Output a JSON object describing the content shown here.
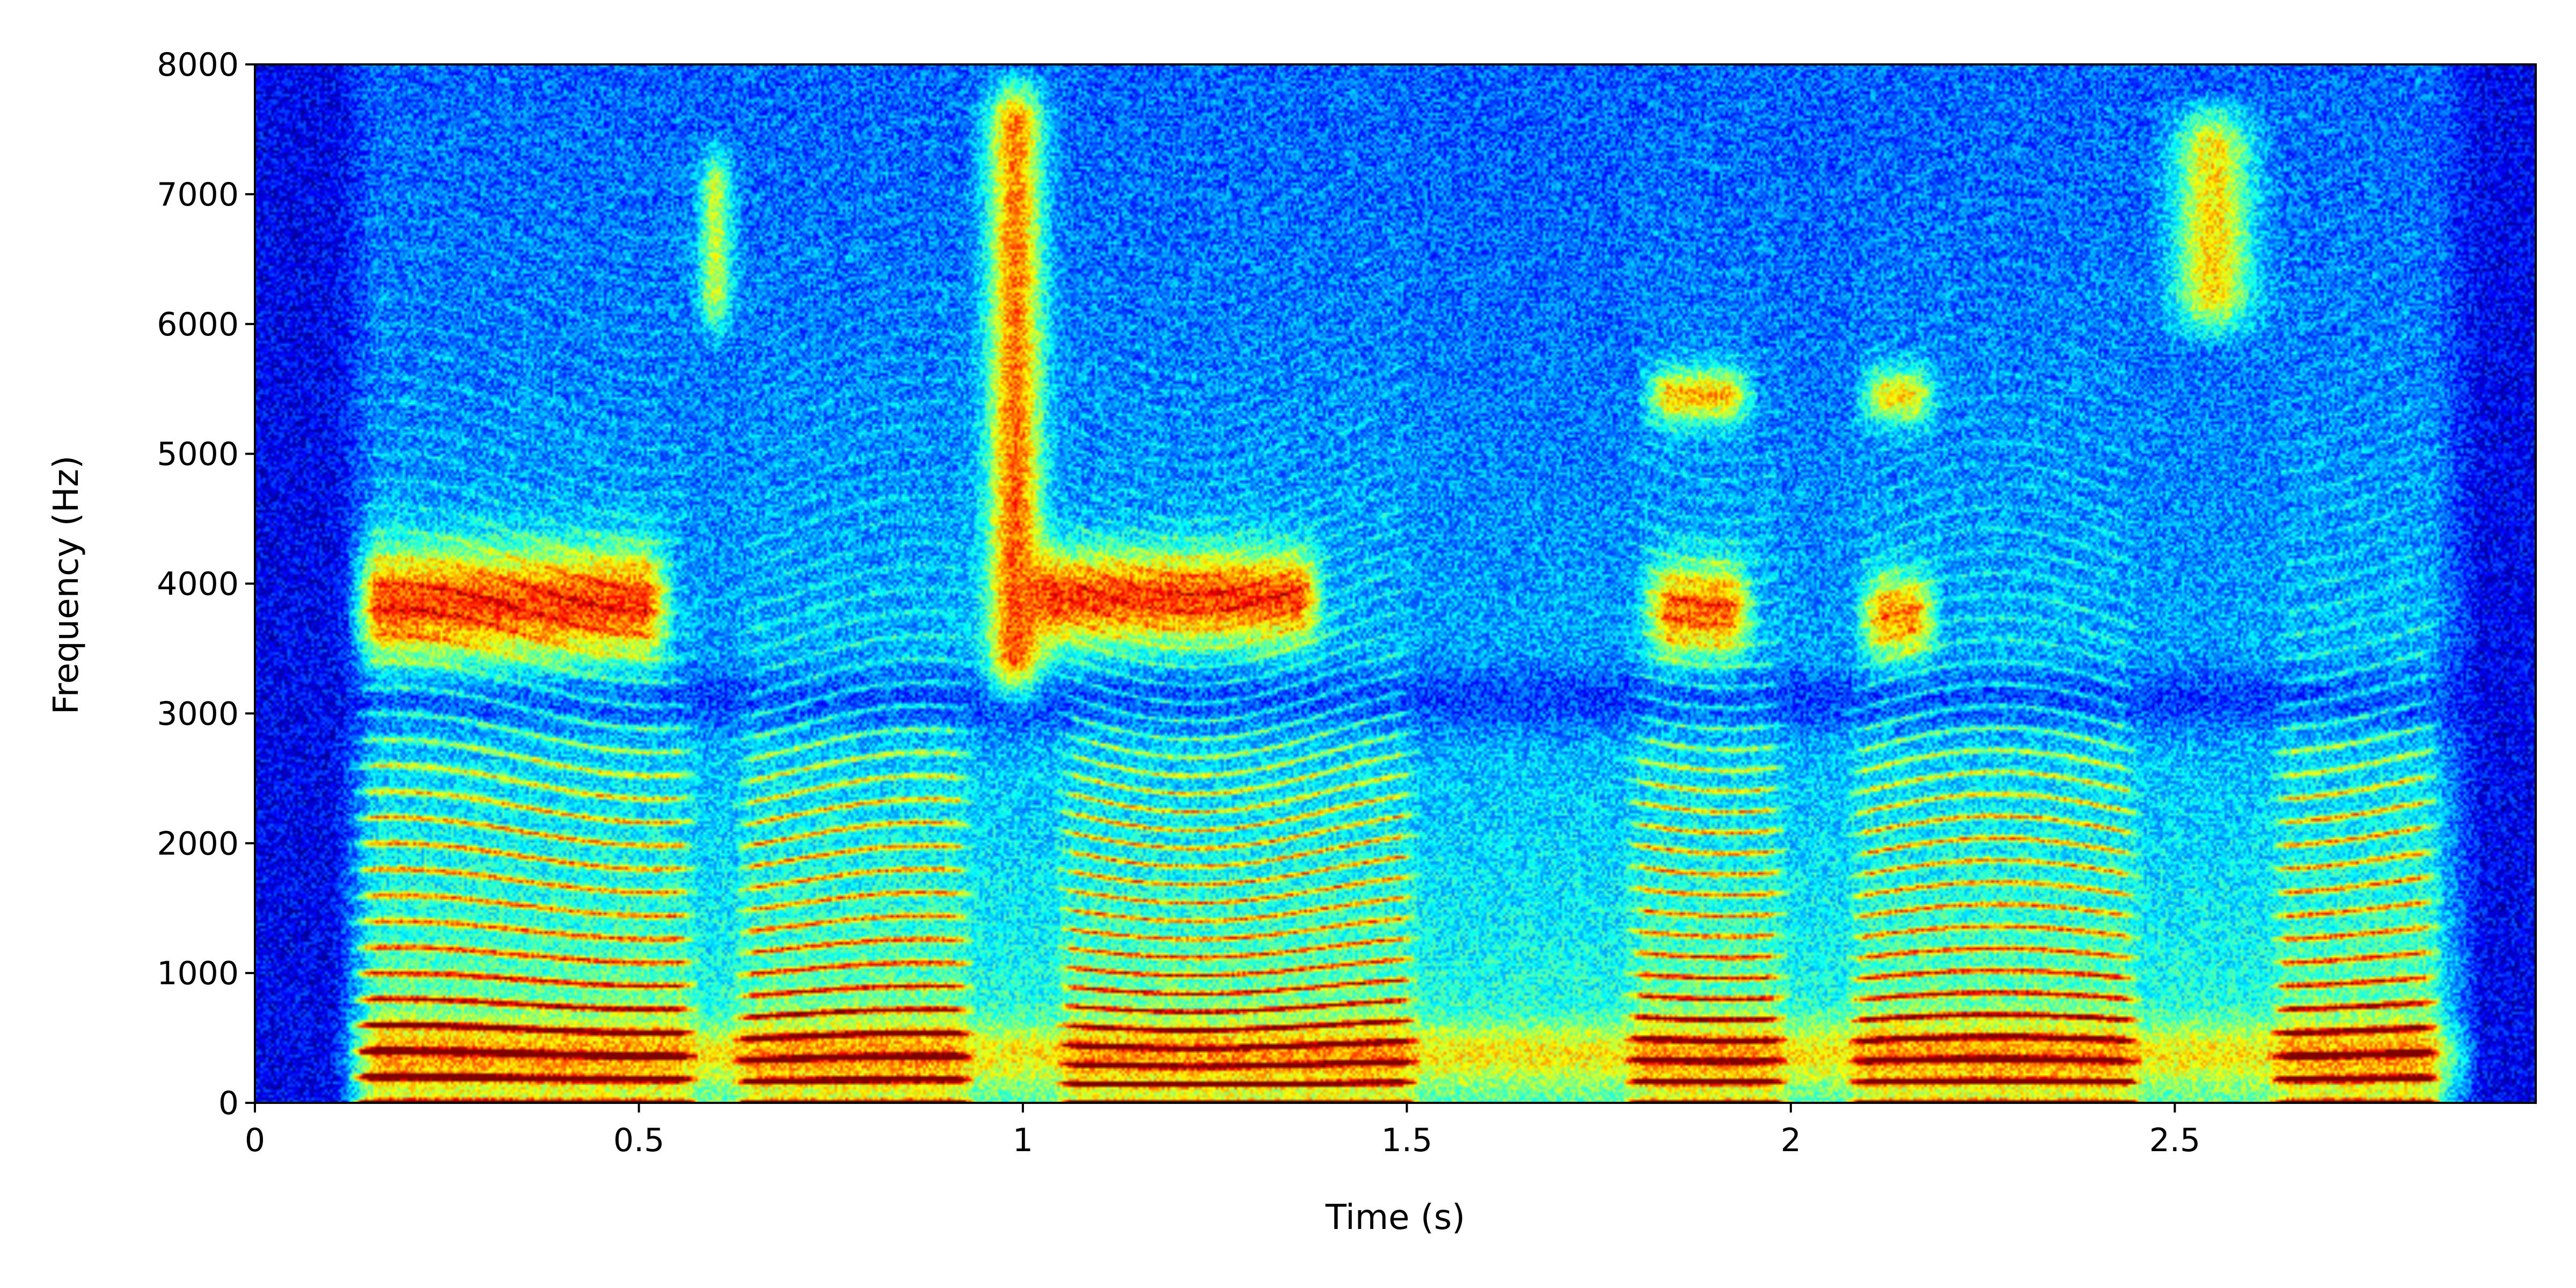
{
  "chart_data": {
    "type": "heatmap",
    "subtype": "spectrogram",
    "colormap": "jet",
    "title": "",
    "xlabel": "Time (s)",
    "ylabel": "Frequency (Hz)",
    "xlim": [
      0,
      2.97
    ],
    "ylim": [
      0,
      8000
    ],
    "x_ticks": [
      "0",
      "0.5",
      "1",
      "1.5",
      "2",
      "2.5"
    ],
    "x_tick_values": [
      0,
      0.5,
      1,
      1.5,
      2,
      2.5
    ],
    "y_ticks": [
      "0",
      "1000",
      "2000",
      "3000",
      "4000",
      "5000",
      "6000",
      "7000",
      "8000"
    ],
    "y_tick_values": [
      0,
      1000,
      2000,
      3000,
      4000,
      5000,
      6000,
      7000,
      8000
    ],
    "grid": false,
    "legend": "none",
    "voiced_segments": [
      {
        "start": 0.12,
        "end": 0.58,
        "harmonic_spacing_hz": 190
      },
      {
        "start": 0.62,
        "end": 0.94,
        "harmonic_spacing_hz": 170
      },
      {
        "start": 1.04,
        "end": 1.52,
        "harmonic_spacing_hz": 150
      },
      {
        "start": 1.78,
        "end": 2.0,
        "harmonic_spacing_hz": 170
      },
      {
        "start": 2.07,
        "end": 2.46,
        "harmonic_spacing_hz": 160
      },
      {
        "start": 2.62,
        "end": 2.85,
        "harmonic_spacing_hz": 190
      }
    ],
    "formant_regions": [
      {
        "t_start": 0.12,
        "t_end": 0.55,
        "f_center": 3850,
        "f_width": 600,
        "level": 0.55
      },
      {
        "t_start": 1.0,
        "t_end": 1.4,
        "f_center": 3900,
        "f_width": 500,
        "level": 0.55
      },
      {
        "t_start": 1.8,
        "t_end": 1.96,
        "f_center": 3800,
        "f_width": 500,
        "level": 0.5
      },
      {
        "t_start": 1.8,
        "t_end": 1.96,
        "f_center": 5450,
        "f_width": 300,
        "level": 0.45
      },
      {
        "t_start": 2.08,
        "t_end": 2.2,
        "f_center": 5450,
        "f_width": 300,
        "level": 0.4
      },
      {
        "t_start": 2.08,
        "t_end": 2.2,
        "f_center": 3750,
        "f_width": 450,
        "level": 0.45
      }
    ],
    "fricative_bursts": [
      {
        "t_center": 0.99,
        "t_width": 0.05,
        "f_low": 3000,
        "f_high": 8000,
        "level": 0.55
      },
      {
        "t_center": 2.55,
        "t_width": 0.07,
        "f_low": 5800,
        "f_high": 7800,
        "level": 0.45
      },
      {
        "t_center": 0.6,
        "t_width": 0.03,
        "f_low": 5800,
        "f_high": 7500,
        "level": 0.35
      }
    ]
  }
}
